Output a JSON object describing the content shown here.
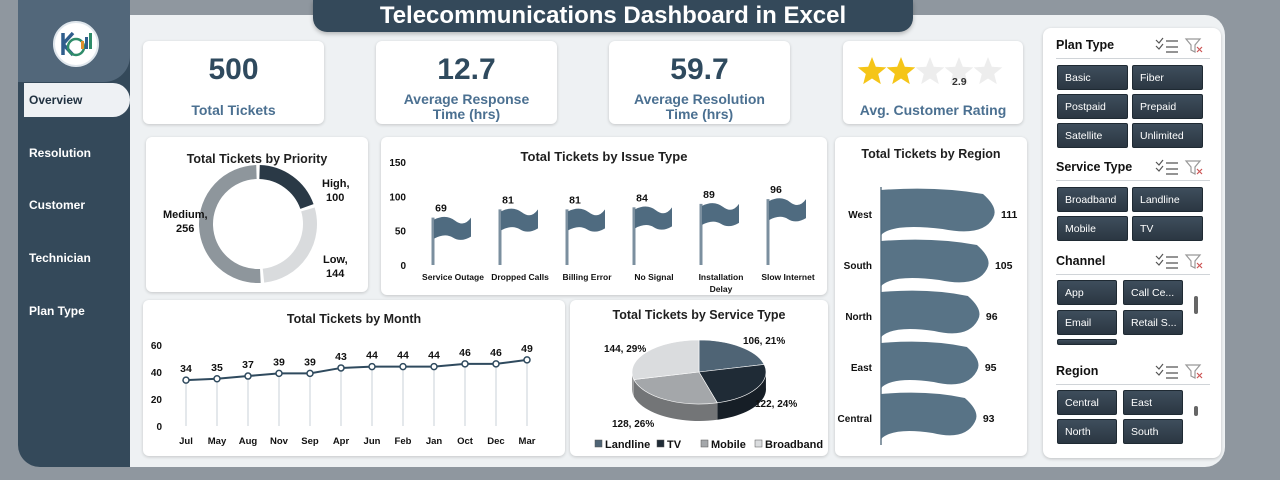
{
  "title": "Telecommunications Dashboard in Excel",
  "nav": [
    {
      "label": "Overview",
      "active": true
    },
    {
      "label": "Resolution"
    },
    {
      "label": "Customer"
    },
    {
      "label": "Technician"
    },
    {
      "label": "Plan Type"
    }
  ],
  "kpis": [
    {
      "value": "500",
      "label": "Total Tickets"
    },
    {
      "value": "12.7",
      "label": "Average Response Time (hrs)"
    },
    {
      "value": "59.7",
      "label": "Average Resolution Time (hrs)"
    },
    {
      "value": "2.9",
      "label": "Avg. Customer Rating",
      "rating": 2.9,
      "max": 5
    }
  ],
  "colors": {
    "accent": "#34495a",
    "bar": "#4f6b80",
    "sidebar": "#34495a"
  },
  "charts": {
    "priority": {
      "title": "Total Tickets by Priority",
      "chart_data": {
        "type": "pie",
        "categories": [
          "High",
          "Low",
          "Medium"
        ],
        "values": [
          100,
          144,
          256
        ],
        "labels": [
          "High,\n100",
          "Low,\n144",
          "Medium,\n256"
        ],
        "colors": [
          "#2a3946",
          "#d9dbdd",
          "#8e969c"
        ]
      }
    },
    "issue": {
      "title": "Total Tickets by Issue Type",
      "chart_data": {
        "type": "bar",
        "categories": [
          "Service Outage",
          "Dropped Calls",
          "Billing Error",
          "No Signal",
          "Installation Delay",
          "Slow Internet"
        ],
        "values": [
          69,
          81,
          81,
          84,
          89,
          96
        ],
        "ylim": [
          0,
          150
        ],
        "yticks": [
          "0",
          "50",
          "100",
          "150"
        ]
      }
    },
    "region": {
      "title": "Total Tickets by Region",
      "chart_data": {
        "type": "bar",
        "categories": [
          "West",
          "South",
          "North",
          "East",
          "Central"
        ],
        "values": [
          111,
          105,
          96,
          95,
          93
        ],
        "orientation": "horizontal"
      }
    },
    "month": {
      "title": "Total Tickets by Month",
      "chart_data": {
        "type": "line",
        "categories": [
          "Jul",
          "May",
          "Aug",
          "Nov",
          "Sep",
          "Apr",
          "Jun",
          "Feb",
          "Jan",
          "Oct",
          "Dec",
          "Mar"
        ],
        "values": [
          34,
          35,
          37,
          39,
          39,
          43,
          44,
          44,
          44,
          46,
          46,
          49
        ],
        "ylim": [
          0,
          60
        ],
        "yticks": [
          "0",
          "20",
          "40",
          "60"
        ]
      }
    },
    "service": {
      "title": "Total Tickets by Service Type",
      "chart_data": {
        "type": "pie",
        "categories": [
          "Landline",
          "TV",
          "Mobile",
          "Broadband"
        ],
        "values": [
          106,
          122,
          128,
          144
        ],
        "labels": [
          "106, 21%",
          "122, 24%",
          "128, 26%",
          "144, 29%"
        ],
        "colors": [
          "#4f6475",
          "#1f2b36",
          "#a4a7aa",
          "#dadcde"
        ]
      }
    }
  },
  "filters": {
    "plan_type": {
      "label": "Plan Type",
      "options": [
        "Basic",
        "Fiber",
        "Postpaid",
        "Prepaid",
        "Satellite",
        "Unlimited"
      ]
    },
    "service_type": {
      "label": "Service Type",
      "options": [
        "Broadband",
        "Landline",
        "Mobile",
        "TV"
      ]
    },
    "channel": {
      "label": "Channel",
      "options": [
        "App",
        "Call Ce...",
        "Email",
        "Retail S..."
      ]
    },
    "region": {
      "label": "Region",
      "options": [
        "Central",
        "East",
        "North",
        "South"
      ]
    }
  }
}
